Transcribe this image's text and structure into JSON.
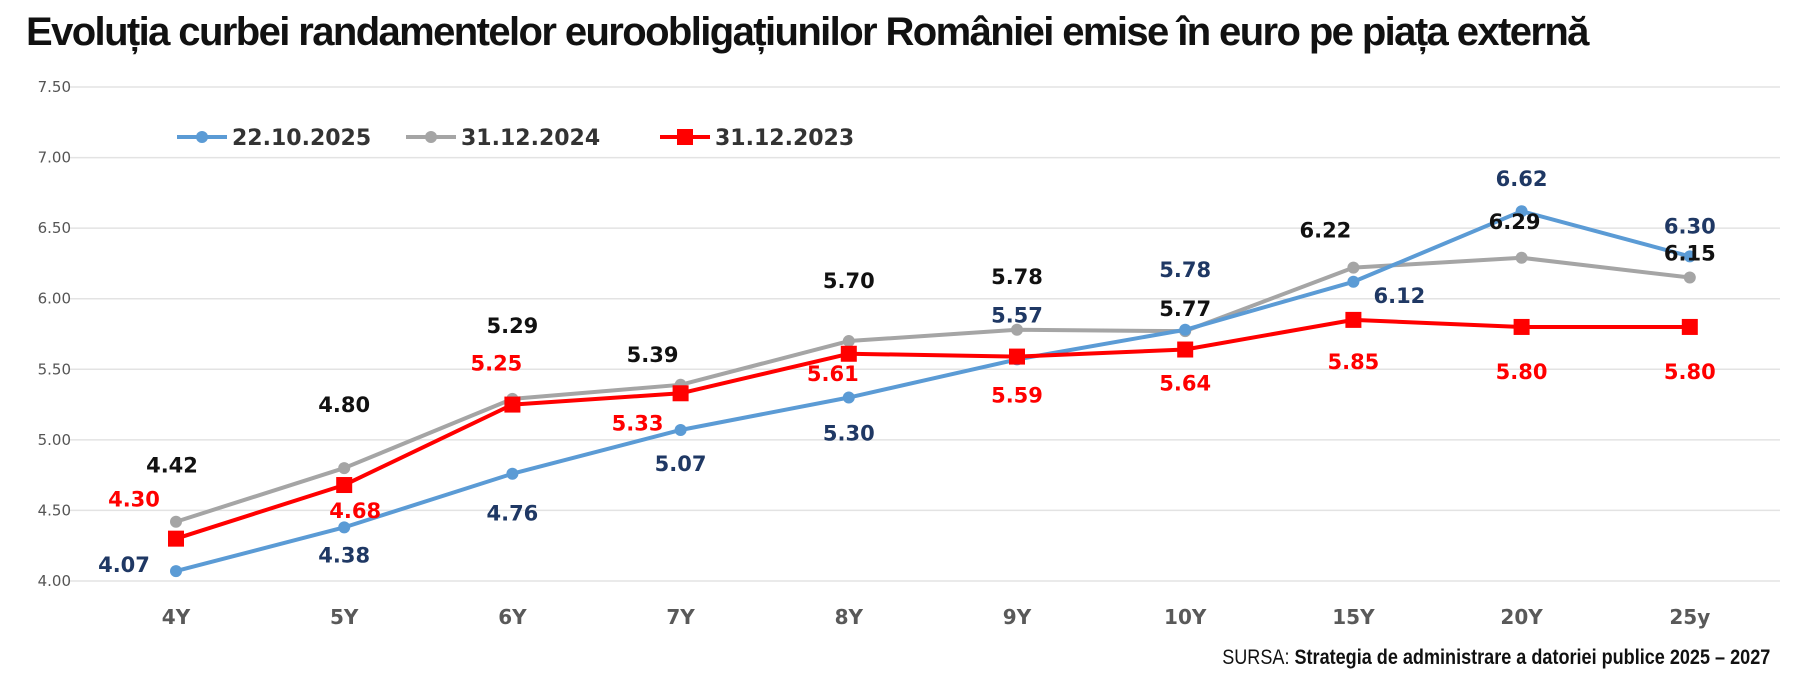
{
  "title": "Evoluția curbei randamentelor euroobligațiunilor României emise în euro pe piața externă",
  "source": {
    "label": "SURSA:",
    "text": "Strategia de administrare a datoriei publice 2025 – 2027"
  },
  "chart_data": {
    "type": "line",
    "title": "Evoluția curbei randamentelor euroobligațiunilor României emise în euro pe piața externă",
    "xlabel": "",
    "ylabel": "",
    "categories": [
      "4Y",
      "5Y",
      "6Y",
      "7Y",
      "8Y",
      "9Y",
      "10Y",
      "15Y",
      "20Y",
      "25y"
    ],
    "ylim": [
      4.0,
      7.5
    ],
    "yticks": [
      "4.00",
      "4.50",
      "5.00",
      "5.50",
      "6.00",
      "6.50",
      "7.00",
      "7.50"
    ],
    "grid": "horizontal",
    "legend_position": "top-left",
    "series": [
      {
        "name": "22.10.2025",
        "color": "#5B9BD5",
        "label_color": "#1F3864",
        "marker": "circle",
        "values": [
          4.07,
          4.38,
          4.76,
          5.07,
          5.3,
          5.57,
          5.78,
          6.12,
          6.62,
          6.3
        ]
      },
      {
        "name": "31.12.2024",
        "color": "#A5A5A5",
        "label_color": "#111111",
        "marker": "circle",
        "values": [
          4.42,
          4.8,
          5.29,
          5.39,
          5.7,
          5.78,
          5.77,
          6.22,
          6.29,
          6.15
        ]
      },
      {
        "name": "31.12.2023",
        "color": "#FF0000",
        "label_color": "#FF0000",
        "marker": "square",
        "values": [
          4.3,
          4.68,
          5.25,
          5.33,
          5.61,
          5.59,
          5.64,
          5.85,
          5.8,
          5.8
        ]
      }
    ]
  }
}
